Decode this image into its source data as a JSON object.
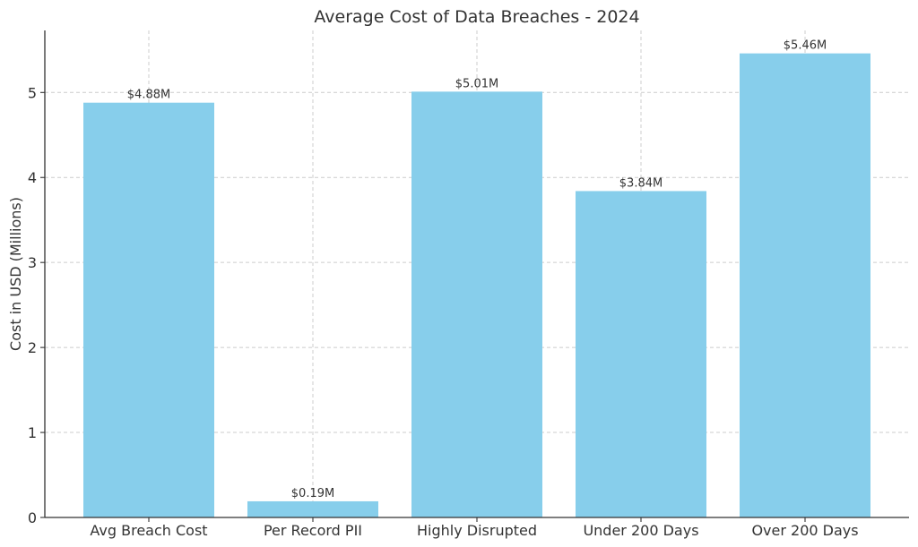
{
  "chart_data": {
    "type": "bar",
    "title": "Average Cost of Data Breaches - 2024",
    "xlabel": "",
    "ylabel": "Cost in USD (Millions)",
    "categories": [
      "Avg Breach Cost",
      "Per Record PII",
      "Highly Disrupted",
      "Under 200 Days",
      "Over 200 Days"
    ],
    "values": [
      4.88,
      0.19,
      5.01,
      3.84,
      5.46
    ],
    "data_labels": [
      "$4.88M",
      "$0.19M",
      "$5.01M",
      "$3.84M",
      "$5.46M"
    ],
    "yticks": [
      0,
      1,
      2,
      3,
      4,
      5
    ],
    "ylim": [
      0,
      5.73
    ],
    "grid": true,
    "bar_color": "#87ceeb"
  }
}
